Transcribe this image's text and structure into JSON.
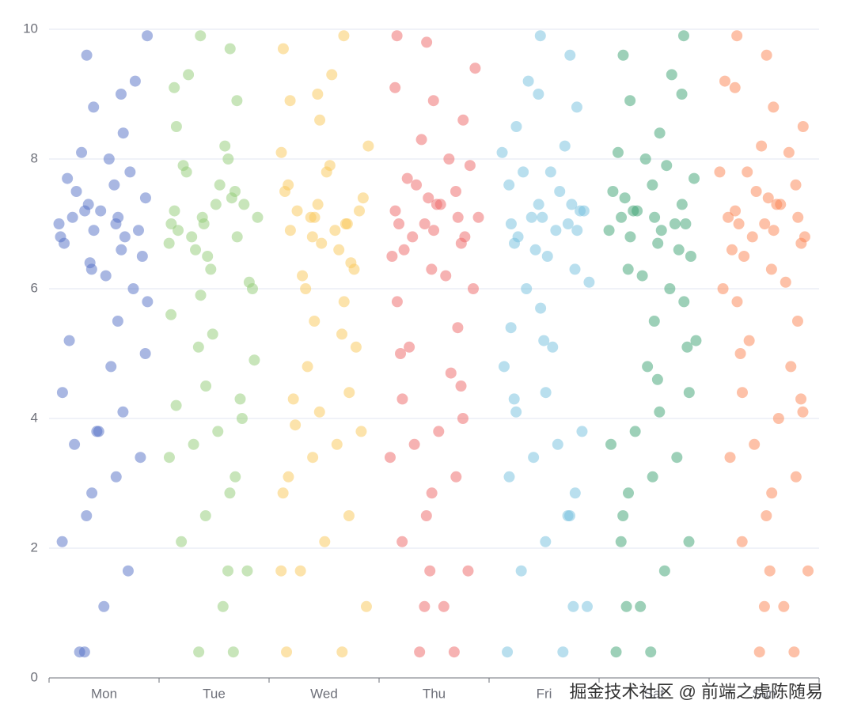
{
  "chart_data": {
    "type": "scatter",
    "categories": [
      "Mon",
      "Tue",
      "Wed",
      "Thu",
      "Fri",
      "Sat",
      "Sun"
    ],
    "colors": [
      "#5470c6",
      "#91cc75",
      "#fac858",
      "#ee6666",
      "#73c0de",
      "#3ba272",
      "#fc8452"
    ],
    "values": [
      [
        7.0,
        6.8,
        7.2,
        7.5,
        6.5,
        7.1,
        6.9,
        7.3,
        6.7,
        7.8,
        6.2,
        8.1,
        5.8,
        8.4,
        5.5,
        8.8,
        5.2,
        9.2,
        4.8,
        9.6,
        4.4,
        9.9,
        4.1,
        3.8,
        3.6,
        3.4,
        3.1,
        2.85,
        2.5,
        2.1,
        1.65,
        1.1,
        0.4,
        7.4,
        6.6,
        7.0,
        6.3,
        7.7,
        6.0,
        8.0,
        7.2,
        6.8,
        5.0,
        9.0,
        3.8,
        7.1,
        6.9,
        7.6,
        6.4,
        0.4
      ],
      [
        7.1,
        6.9,
        7.3,
        7.6,
        6.6,
        7.0,
        6.8,
        7.4,
        6.5,
        7.9,
        6.1,
        8.2,
        5.9,
        8.5,
        5.6,
        8.9,
        5.3,
        9.3,
        4.9,
        9.7,
        4.5,
        9.9,
        4.2,
        4.0,
        3.8,
        3.6,
        3.4,
        3.1,
        2.85,
        2.5,
        2.1,
        1.65,
        1.1,
        0.4,
        7.2,
        6.7,
        7.5,
        6.3,
        7.8,
        6.0,
        8.0,
        7.0,
        5.1,
        9.1,
        4.3,
        7.3,
        6.8,
        7.1,
        0.4,
        1.65
      ],
      [
        7.0,
        6.7,
        7.2,
        7.4,
        6.6,
        7.1,
        6.9,
        7.5,
        6.4,
        7.8,
        6.2,
        8.2,
        5.8,
        8.6,
        5.5,
        8.9,
        5.1,
        9.3,
        4.8,
        9.7,
        4.4,
        9.9,
        4.1,
        3.9,
        3.8,
        3.6,
        3.4,
        3.1,
        2.85,
        2.5,
        2.1,
        1.65,
        1.1,
        0.4,
        7.3,
        6.8,
        7.6,
        6.3,
        7.9,
        6.0,
        8.1,
        7.0,
        5.3,
        9.0,
        4.3,
        7.2,
        6.9,
        7.1,
        0.4,
        1.65
      ],
      [
        7.0,
        6.8,
        7.3,
        7.6,
        6.5,
        7.1,
        6.9,
        7.4,
        6.6,
        7.9,
        6.2,
        8.3,
        5.8,
        8.6,
        5.4,
        8.9,
        5.1,
        9.4,
        4.7,
        9.8,
        4.3,
        9.9,
        4.0,
        3.8,
        3.6,
        3.4,
        3.1,
        2.85,
        2.5,
        2.1,
        1.65,
        1.1,
        0.4,
        7.2,
        6.7,
        7.5,
        6.3,
        7.7,
        6.0,
        8.0,
        7.0,
        5.0,
        9.1,
        4.5,
        7.3,
        6.8,
        7.1,
        0.4,
        1.65,
        1.1
      ],
      [
        7.1,
        6.8,
        7.2,
        7.5,
        6.6,
        7.0,
        6.9,
        7.3,
        6.5,
        7.8,
        6.1,
        8.2,
        5.7,
        8.5,
        5.4,
        8.8,
        5.1,
        9.2,
        4.8,
        9.6,
        4.4,
        9.9,
        4.1,
        3.8,
        3.6,
        3.4,
        3.1,
        2.85,
        2.5,
        2.1,
        1.65,
        1.1,
        0.4,
        7.3,
        6.7,
        7.6,
        6.3,
        7.8,
        6.0,
        8.1,
        7.0,
        5.2,
        9.0,
        4.3,
        7.2,
        6.9,
        7.1,
        0.4,
        1.1,
        2.5
      ],
      [
        7.0,
        6.9,
        7.2,
        7.5,
        6.6,
        7.1,
        6.8,
        7.4,
        6.5,
        7.9,
        6.2,
        8.1,
        5.8,
        8.4,
        5.5,
        8.9,
        5.2,
        9.3,
        4.8,
        9.6,
        4.4,
        9.9,
        4.1,
        3.8,
        3.6,
        3.4,
        3.1,
        2.85,
        2.5,
        2.1,
        1.65,
        1.1,
        0.4,
        7.3,
        6.7,
        7.6,
        6.3,
        7.7,
        6.0,
        8.0,
        7.1,
        5.1,
        9.0,
        4.6,
        7.2,
        6.9,
        7.0,
        0.4,
        1.1,
        2.1
      ],
      [
        7.0,
        6.8,
        7.3,
        7.5,
        6.6,
        7.1,
        6.9,
        7.4,
        6.5,
        7.8,
        6.1,
        8.2,
        5.8,
        8.5,
        5.5,
        8.8,
        5.2,
        9.2,
        4.8,
        9.6,
        4.4,
        9.9,
        4.1,
        4.0,
        3.6,
        3.4,
        3.1,
        2.85,
        2.5,
        2.1,
        1.65,
        1.1,
        0.4,
        7.2,
        6.7,
        7.6,
        6.3,
        7.8,
        6.0,
        8.1,
        7.0,
        5.0,
        9.1,
        4.3,
        7.3,
        6.8,
        7.1,
        0.4,
        1.65,
        1.1
      ]
    ],
    "ylim": [
      0,
      10
    ],
    "yticks": [
      0,
      2,
      4,
      6,
      8,
      10
    ],
    "grid": true,
    "watermark": "掘金技术社区 @ 前端之虎陈随易"
  }
}
